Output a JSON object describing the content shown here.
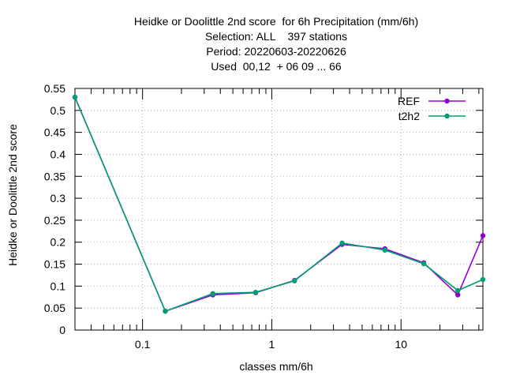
{
  "chart_data": {
    "type": "line",
    "title_lines": [
      "Heidke or Doolittle 2nd score  for 6h Precipitation (mm/6h)",
      "Selection: ALL    397 stations",
      "Period: 20220603-20220626",
      "Used  00,12  + 06 09 ... 66"
    ],
    "xlabel": "classes mm/6h",
    "ylabel": "Heidke or Doolittle 2nd score",
    "x_scale": "log",
    "xlim": [
      0.03,
      43
    ],
    "ylim": [
      0,
      0.55
    ],
    "x_ticks": [
      0.1,
      1,
      10
    ],
    "x_tick_labels": [
      "0.1",
      "1",
      "10"
    ],
    "y_ticks": [
      0,
      0.05,
      0.1,
      0.15,
      0.2,
      0.25,
      0.3,
      0.35,
      0.4,
      0.45,
      0.5,
      0.55
    ],
    "y_tick_labels": [
      "0",
      "0.05",
      "0.1",
      "0.15",
      "0.2",
      "0.25",
      "0.3",
      "0.35",
      "0.4",
      "0.45",
      "0.5",
      "0.55"
    ],
    "grid": true,
    "legend_position": "top-right",
    "x": [
      0.03,
      0.15,
      0.35,
      0.75,
      1.5,
      3.5,
      7.5,
      15,
      27.5,
      43
    ],
    "series": [
      {
        "name": "REF",
        "color": "#9400d3",
        "values": [
          0.53,
          0.043,
          0.08,
          0.085,
          0.113,
          0.195,
          0.185,
          0.153,
          0.08,
          0.215
        ]
      },
      {
        "name": "t2h2",
        "color": "#009e73",
        "values": [
          0.53,
          0.043,
          0.083,
          0.086,
          0.112,
          0.198,
          0.182,
          0.151,
          0.09,
          0.115
        ]
      }
    ]
  }
}
